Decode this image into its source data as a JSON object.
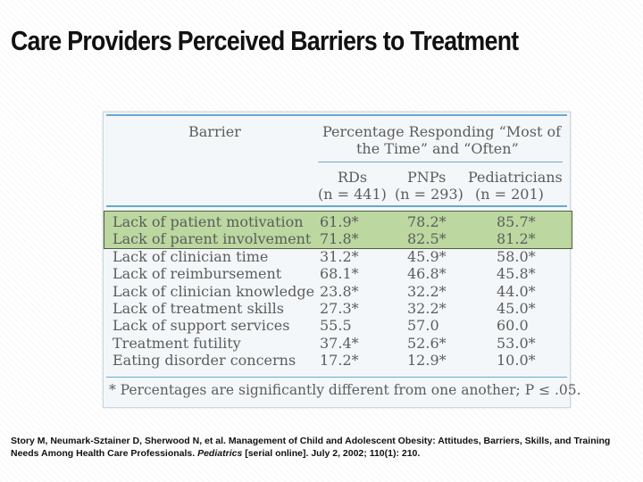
{
  "slide": {
    "title": "Care Providers Perceived Barriers to Treatment"
  },
  "table": {
    "header": {
      "barrier_label": "Barrier",
      "group_label_line1": "Percentage Responding “Most of",
      "group_label_line2": "the Time” and “Often”",
      "columns": [
        {
          "name": "RDs",
          "n": "(n = 441)"
        },
        {
          "name": "PNPs",
          "n": "(n = 293)"
        },
        {
          "name": "Pediatricians",
          "n": "(n = 201)"
        }
      ]
    },
    "rows": [
      {
        "barrier": "Lack of patient motivation",
        "values": [
          "61.9*",
          "78.2*",
          "85.7*"
        ],
        "highlighted": true
      },
      {
        "barrier": "Lack of parent involvement",
        "values": [
          "71.8*",
          "82.5*",
          "81.2*"
        ],
        "highlighted": true
      },
      {
        "barrier": "Lack of clinician time",
        "values": [
          "31.2*",
          "45.9*",
          "58.0*"
        ]
      },
      {
        "barrier": "Lack of reimbursement",
        "values": [
          "68.1*",
          "46.8*",
          "45.8*"
        ]
      },
      {
        "barrier": "Lack of clinician knowledge",
        "values": [
          "23.8*",
          "32.2*",
          "44.0*"
        ]
      },
      {
        "barrier": "Lack of treatment skills",
        "values": [
          "27.3*",
          "32.2*",
          "45.0*"
        ]
      },
      {
        "barrier": "Lack of support services",
        "values": [
          "55.5",
          "57.0",
          "60.0"
        ]
      },
      {
        "barrier": "Treatment futility",
        "values": [
          "37.4*",
          "52.6*",
          "53.0*"
        ]
      },
      {
        "barrier": "Eating disorder concerns",
        "values": [
          "17.2*",
          "12.9*",
          "10.0*"
        ]
      }
    ],
    "footnote": "* Percentages are significantly different from one another; P ≤ .05."
  },
  "citation": {
    "part1": "Story M, Neumark-Sztainer D, Sherwood N, et al. Management of Child and Adolescent Obesity: Attitudes, Barriers, Skills, and Training Needs Among Health Care Professionals. ",
    "journal": "Pediatrics",
    "part2": " [serial online]. July 2, 2002; 110(1): 210."
  },
  "colors": {
    "highlight": "#aacd82",
    "rule": "#6aa8cf",
    "table_text": "#5c5c5c"
  }
}
